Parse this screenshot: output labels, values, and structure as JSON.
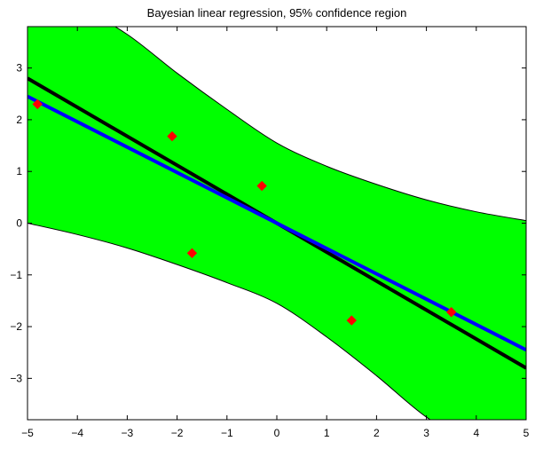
{
  "chart_data": {
    "type": "line",
    "title": "Bayesian linear regression, 95% confidence region",
    "xlabel": "",
    "ylabel": "",
    "xlim": [
      -5,
      5
    ],
    "ylim": [
      -3.8,
      3.8
    ],
    "xticks": [
      -5,
      -4,
      -3,
      -2,
      -1,
      0,
      1,
      2,
      3,
      4,
      5
    ],
    "yticks": [
      -3,
      -2,
      -1,
      0,
      1,
      2,
      3
    ],
    "xtick_labels": [
      "−5",
      "−4",
      "−3",
      "−2",
      "−1",
      "0",
      "1",
      "2",
      "3",
      "4",
      "5"
    ],
    "ytick_labels": [
      "−3",
      "−2",
      "−1",
      "0",
      "1",
      "2",
      "3"
    ],
    "grid": false,
    "confidence_region": {
      "x": [
        -5,
        -4,
        -3,
        -2,
        -1,
        0,
        1,
        2,
        3,
        4,
        5
      ],
      "upper": [
        4.6,
        4.2,
        3.65,
        2.9,
        2.2,
        1.55,
        1.1,
        0.75,
        0.45,
        0.22,
        0.05
      ],
      "lower": [
        0.0,
        -0.22,
        -0.48,
        -0.8,
        -1.15,
        -1.55,
        -2.2,
        -2.95,
        -3.75,
        -4.3,
        -4.8
      ],
      "color": "#00ff00"
    },
    "series": [
      {
        "x": [
          -5,
          5
        ],
        "y": [
          2.8,
          -2.8
        ],
        "color": "#000000"
      },
      {
        "x": [
          -5,
          5
        ],
        "y": [
          2.45,
          -2.45
        ],
        "color": "#0000ff"
      }
    ],
    "points": {
      "x": [
        -4.8,
        -2.1,
        -1.7,
        -0.3,
        1.5,
        3.5
      ],
      "y": [
        2.3,
        1.68,
        -0.58,
        0.72,
        -1.88,
        -1.72
      ],
      "color": "#ff0000"
    }
  }
}
